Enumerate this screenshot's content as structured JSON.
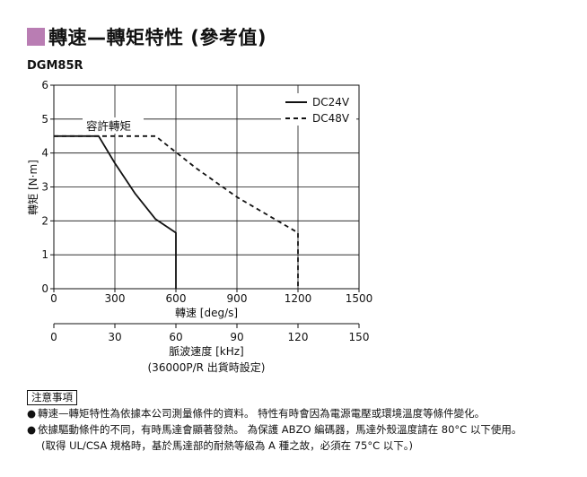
{
  "title": "轉速—轉矩特性 (參考值)",
  "model": "DGM85R",
  "chart_data": {
    "type": "line",
    "xlabel": "轉速 [deg/s]",
    "ylabel": "轉矩 [N·m]",
    "xlim": [
      0,
      1500
    ],
    "ylim": [
      0,
      6
    ],
    "x_ticks": [
      "0",
      "300",
      "600",
      "900",
      "1200",
      "1500"
    ],
    "y_ticks": [
      "0",
      "1",
      "2",
      "3",
      "4",
      "5",
      "6"
    ],
    "grid": true,
    "legend_position": "top-right",
    "annotation": "容許轉矩",
    "series": [
      {
        "name": "DC24V",
        "style": "solid",
        "x": [
          0,
          220,
          300,
          400,
          500,
          600,
          600
        ],
        "y": [
          4.5,
          4.5,
          3.7,
          2.8,
          2.05,
          1.65,
          0
        ]
      },
      {
        "name": "DC48V",
        "style": "dashed",
        "x": [
          0,
          500,
          700,
          900,
          1100,
          1200,
          1200
        ],
        "y": [
          4.5,
          4.5,
          3.55,
          2.7,
          2.0,
          1.65,
          0
        ]
      }
    ],
    "secondary_axis": {
      "label": "脈波速度 [kHz]",
      "note": "(36000P/R 出貨時設定)",
      "ticks": [
        "0",
        "30",
        "60",
        "90",
        "120",
        "150"
      ]
    }
  },
  "notes": {
    "heading": "注意事項",
    "bullet": "●",
    "items": [
      "轉速—轉矩特性為依據本公司測量條件的資料。 特性有時會因為電源電壓或環境溫度等條件變化。",
      "依據驅動條件的不同，有時馬達會顯著發熱。 為保護 ABZO 編碼器，馬達外殼溫度請在 80°C 以下使用。"
    ],
    "subitem": "(取得 UL/CSA 規格時，基於馬達部的耐熱等級為 A 種之故，必須在 75°C 以下。)"
  }
}
